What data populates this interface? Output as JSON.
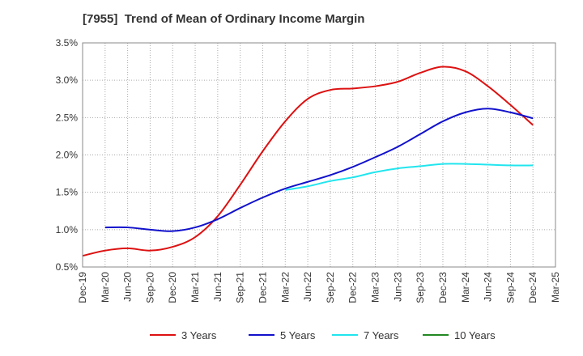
{
  "title": "[7955]  Trend of Mean of Ordinary Income Margin",
  "chart_data": {
    "type": "line",
    "title": "[7955]  Trend of Mean of Ordinary Income Margin",
    "xlabel": "",
    "ylabel": "",
    "ylim": [
      0.5,
      3.5
    ],
    "yticks": [
      "0.5%",
      "1.0%",
      "1.5%",
      "2.0%",
      "2.5%",
      "3.0%",
      "3.5%"
    ],
    "ytick_values": [
      0.5,
      1.0,
      1.5,
      2.0,
      2.5,
      3.0,
      3.5
    ],
    "categories": [
      "Dec-19",
      "Mar-20",
      "Jun-20",
      "Sep-20",
      "Dec-20",
      "Mar-21",
      "Jun-21",
      "Sep-21",
      "Dec-21",
      "Mar-22",
      "Jun-22",
      "Sep-22",
      "Dec-22",
      "Mar-23",
      "Jun-23",
      "Sep-23",
      "Dec-23",
      "Mar-24",
      "Jun-24",
      "Sep-24",
      "Dec-24",
      "Mar-25"
    ],
    "grid": true,
    "legend_position": "bottom",
    "series": [
      {
        "name": "3 Years",
        "color": "#dd1111",
        "values": [
          0.65,
          0.72,
          0.75,
          0.72,
          0.77,
          0.9,
          1.18,
          1.6,
          2.05,
          2.45,
          2.75,
          2.87,
          2.89,
          2.92,
          2.98,
          3.1,
          3.18,
          3.12,
          2.92,
          2.67,
          2.4,
          null
        ]
      },
      {
        "name": "5 Years",
        "color": "#1111cc",
        "values": [
          null,
          1.03,
          1.03,
          1.0,
          0.98,
          1.03,
          1.14,
          1.29,
          1.43,
          1.55,
          1.64,
          1.73,
          1.84,
          1.97,
          2.11,
          2.28,
          2.45,
          2.57,
          2.62,
          2.57,
          2.49,
          null
        ]
      },
      {
        "name": "7 Years",
        "color": "#22e5ee",
        "values": [
          null,
          null,
          null,
          null,
          null,
          null,
          null,
          null,
          null,
          1.53,
          1.58,
          1.65,
          1.7,
          1.77,
          1.82,
          1.85,
          1.88,
          1.88,
          1.87,
          1.86,
          1.86,
          null
        ]
      },
      {
        "name": "10 Years",
        "color": "#228822",
        "values": [
          null,
          null,
          null,
          null,
          null,
          null,
          null,
          null,
          null,
          null,
          null,
          null,
          null,
          null,
          null,
          null,
          null,
          null,
          null,
          null,
          null,
          null
        ]
      }
    ]
  }
}
